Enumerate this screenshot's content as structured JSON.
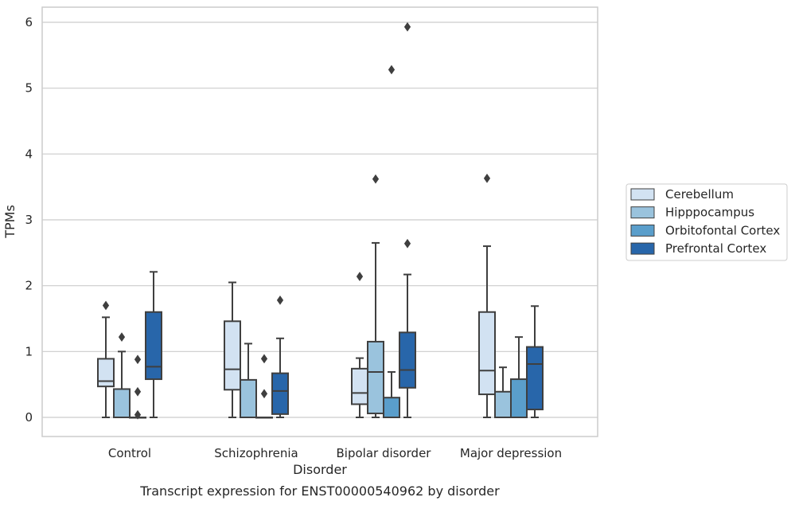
{
  "chart_data": {
    "type": "box",
    "caption": "Transcript expression for ENST00000540962 by disorder",
    "xlabel": "Disorder",
    "ylabel": "TPMs",
    "ylim": [
      -0.28,
      6.23
    ],
    "yticks": [
      0,
      1,
      2,
      3,
      4,
      5,
      6
    ],
    "grid": "horizontal",
    "legend_position": "right",
    "categories": [
      "Control",
      "Schizophrenia",
      "Bipolar disorder",
      "Major depression"
    ],
    "series": [
      {
        "name": "Cerebellum",
        "color": "#d2e2f2",
        "boxes": [
          {
            "whisker_low": 0.0,
            "q1": 0.47,
            "median": 0.55,
            "q3": 0.89,
            "whisker_high": 1.52,
            "outliers": [
              1.7
            ]
          },
          {
            "whisker_low": 0.0,
            "q1": 0.42,
            "median": 0.73,
            "q3": 1.46,
            "whisker_high": 2.05,
            "outliers": []
          },
          {
            "whisker_low": 0.0,
            "q1": 0.2,
            "median": 0.37,
            "q3": 0.74,
            "whisker_high": 0.9,
            "outliers": [
              2.14
            ]
          },
          {
            "whisker_low": 0.0,
            "q1": 0.35,
            "median": 0.71,
            "q3": 1.6,
            "whisker_high": 2.6,
            "outliers": [
              3.63
            ]
          }
        ]
      },
      {
        "name": "Hipppocampus",
        "color": "#9ac3dd",
        "boxes": [
          {
            "whisker_low": 0.0,
            "q1": 0.0,
            "median": 0.0,
            "q3": 0.43,
            "whisker_high": 1.0,
            "outliers": [
              1.22
            ]
          },
          {
            "whisker_low": 0.0,
            "q1": 0.0,
            "median": 0.0,
            "q3": 0.57,
            "whisker_high": 1.12,
            "outliers": []
          },
          {
            "whisker_low": 0.0,
            "q1": 0.06,
            "median": 0.69,
            "q3": 1.15,
            "whisker_high": 2.65,
            "outliers": [
              3.62
            ]
          },
          {
            "whisker_low": 0.0,
            "q1": 0.0,
            "median": 0.0,
            "q3": 0.39,
            "whisker_high": 0.76,
            "outliers": []
          }
        ]
      },
      {
        "name": "Orbitofontal Cortex",
        "color": "#5a9ecb",
        "boxes": [
          {
            "whisker_low": 0.0,
            "q1": 0.0,
            "median": 0.0,
            "q3": 0.0,
            "whisker_high": 0.0,
            "outliers": [
              0.88,
              0.39,
              0.04
            ]
          },
          {
            "whisker_low": 0.0,
            "q1": 0.0,
            "median": 0.0,
            "q3": 0.0,
            "whisker_high": 0.0,
            "outliers": [
              0.89,
              0.36
            ]
          },
          {
            "whisker_low": 0.0,
            "q1": 0.0,
            "median": 0.0,
            "q3": 0.3,
            "whisker_high": 0.69,
            "outliers": [
              5.28
            ]
          },
          {
            "whisker_low": 0.0,
            "q1": 0.0,
            "median": 0.0,
            "q3": 0.58,
            "whisker_high": 1.22,
            "outliers": []
          }
        ]
      },
      {
        "name": "Prefrontal Cortex",
        "color": "#2866aa",
        "boxes": [
          {
            "whisker_low": 0.0,
            "q1": 0.58,
            "median": 0.77,
            "q3": 1.6,
            "whisker_high": 2.21,
            "outliers": []
          },
          {
            "whisker_low": 0.0,
            "q1": 0.05,
            "median": 0.4,
            "q3": 0.67,
            "whisker_high": 1.2,
            "outliers": [
              1.78
            ]
          },
          {
            "whisker_low": 0.0,
            "q1": 0.45,
            "median": 0.72,
            "q3": 1.29,
            "whisker_high": 2.17,
            "outliers": [
              2.64,
              5.93
            ]
          },
          {
            "whisker_low": 0.0,
            "q1": 0.12,
            "median": 0.81,
            "q3": 1.07,
            "whisker_high": 1.69,
            "outliers": []
          }
        ]
      }
    ]
  }
}
